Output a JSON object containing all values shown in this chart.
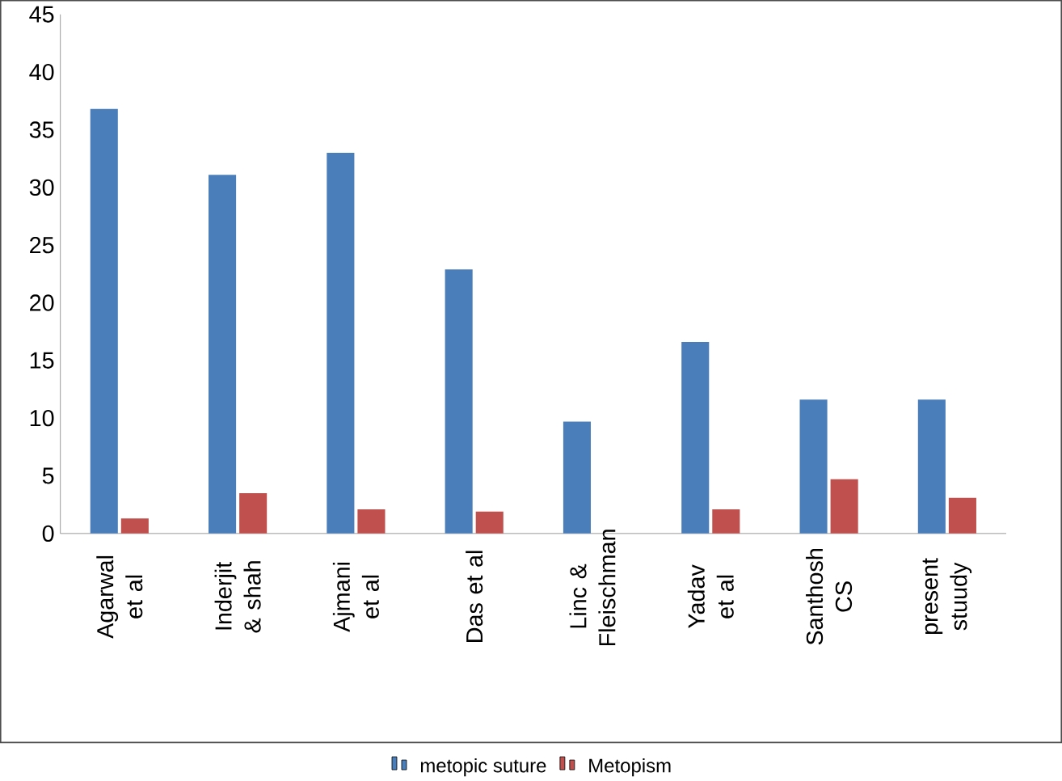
{
  "chart_data": {
    "type": "bar",
    "categories": [
      "Agarwal et al",
      "Inderjit & shah",
      "Ajmani et al",
      "Das et al",
      "Linc & Fleischman",
      "Yadav et al",
      "Santhosh CS",
      "present stuudy"
    ],
    "series": [
      {
        "name": "metopic suture",
        "color": "#4a7ebb",
        "values": [
          36.8,
          31.1,
          33.0,
          22.9,
          9.7,
          16.6,
          11.6,
          11.6
        ]
      },
      {
        "name": "Metopism",
        "color": "#c0504d",
        "values": [
          1.3,
          3.5,
          2.1,
          1.9,
          0,
          2.1,
          4.7,
          3.1
        ]
      }
    ],
    "ylim": [
      0,
      45
    ],
    "yticks": [
      0,
      5,
      10,
      15,
      20,
      25,
      30,
      35,
      40,
      45
    ],
    "grid": false,
    "legend": "bottom"
  }
}
